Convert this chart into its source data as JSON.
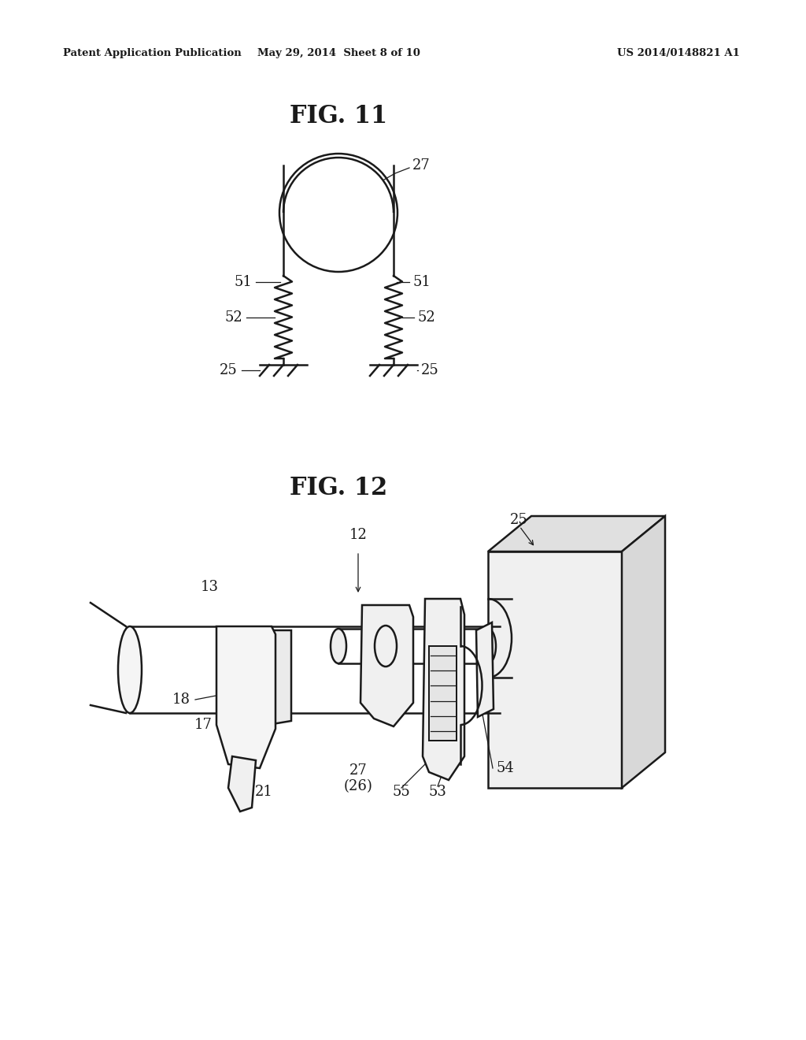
{
  "bg_color": "#ffffff",
  "line_color": "#1a1a1a",
  "header_left": "Patent Application Publication",
  "header_center": "May 29, 2014  Sheet 8 of 10",
  "header_right": "US 2014/0148821 A1",
  "fig11_title": "FIG. 11",
  "fig12_title": "FIG. 12"
}
